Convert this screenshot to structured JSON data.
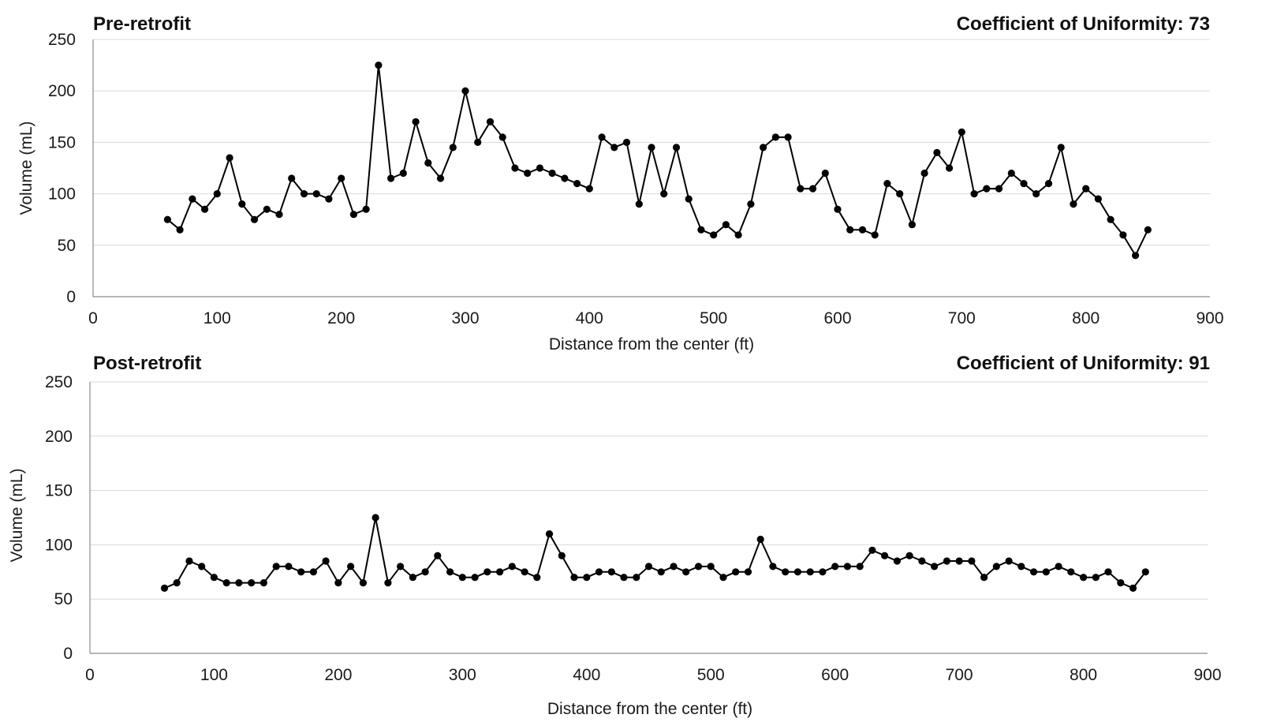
{
  "chart_data": [
    {
      "type": "line",
      "title": "Pre-retrofit",
      "annotation": "Coefficient of Uniformity: 73",
      "xlabel": "Distance from the center (ft)",
      "ylabel": "Volume (mL)",
      "xlim": [
        0,
        900
      ],
      "ylim": [
        0,
        250
      ],
      "xticks": [
        0,
        100,
        200,
        300,
        400,
        500,
        600,
        700,
        800,
        900
      ],
      "yticks": [
        0,
        50,
        100,
        150,
        200,
        250
      ],
      "grid": true,
      "x": [
        60,
        70,
        80,
        90,
        100,
        110,
        120,
        130,
        140,
        150,
        160,
        170,
        180,
        190,
        200,
        210,
        220,
        230,
        240,
        250,
        260,
        270,
        280,
        290,
        300,
        310,
        320,
        330,
        340,
        350,
        360,
        370,
        380,
        390,
        400,
        410,
        420,
        430,
        440,
        450,
        460,
        470,
        480,
        490,
        500,
        510,
        520,
        530,
        540,
        550,
        560,
        570,
        580,
        590,
        600,
        610,
        620,
        630,
        640,
        650,
        660,
        670,
        680,
        690,
        700,
        710,
        720,
        730,
        740,
        750,
        760,
        770,
        780,
        790,
        800,
        810,
        820,
        830,
        840,
        850
      ],
      "values": [
        75,
        65,
        95,
        85,
        100,
        135,
        90,
        75,
        85,
        80,
        115,
        100,
        100,
        95,
        115,
        80,
        85,
        225,
        115,
        120,
        170,
        130,
        115,
        145,
        200,
        150,
        170,
        155,
        125,
        120,
        125,
        120,
        115,
        110,
        105,
        155,
        145,
        150,
        90,
        145,
        100,
        145,
        95,
        65,
        60,
        70,
        60,
        90,
        145,
        155,
        155,
        105,
        105,
        120,
        85,
        65,
        65,
        60,
        110,
        100,
        70,
        120,
        140,
        125,
        160,
        100,
        105,
        105,
        120,
        110,
        100,
        110,
        145,
        90,
        105,
        95,
        75,
        60,
        40,
        65
      ]
    },
    {
      "type": "line",
      "title": "Post-retrofit",
      "annotation": "Coefficient of Uniformity: 91",
      "xlabel": "Distance from the center (ft)",
      "ylabel": "Volume (mL)",
      "xlim": [
        0,
        900
      ],
      "ylim": [
        0,
        250
      ],
      "xticks": [
        0,
        100,
        200,
        300,
        400,
        500,
        600,
        700,
        800,
        900
      ],
      "yticks": [
        0,
        50,
        100,
        150,
        200,
        250
      ],
      "grid": true,
      "x": [
        60,
        70,
        80,
        90,
        100,
        110,
        120,
        130,
        140,
        150,
        160,
        170,
        180,
        190,
        200,
        210,
        220,
        230,
        240,
        250,
        260,
        270,
        280,
        290,
        300,
        310,
        320,
        330,
        340,
        350,
        360,
        370,
        380,
        390,
        400,
        410,
        420,
        430,
        440,
        450,
        460,
        470,
        480,
        490,
        500,
        510,
        520,
        530,
        540,
        550,
        560,
        570,
        580,
        590,
        600,
        610,
        620,
        630,
        640,
        650,
        660,
        670,
        680,
        690,
        700,
        710,
        720,
        730,
        740,
        750,
        760,
        770,
        780,
        790,
        800,
        810,
        820,
        830,
        840,
        850
      ],
      "values": [
        60,
        65,
        85,
        80,
        70,
        65,
        65,
        65,
        65,
        80,
        80,
        75,
        75,
        85,
        65,
        80,
        65,
        125,
        65,
        80,
        70,
        75,
        90,
        75,
        70,
        70,
        75,
        75,
        80,
        75,
        70,
        110,
        90,
        70,
        70,
        75,
        75,
        70,
        70,
        80,
        75,
        80,
        75,
        80,
        80,
        70,
        75,
        75,
        105,
        80,
        75,
        75,
        75,
        75,
        80,
        80,
        80,
        95,
        90,
        85,
        90,
        85,
        80,
        85,
        85,
        85,
        70,
        80,
        85,
        80,
        75,
        75,
        80,
        75,
        70,
        70,
        75,
        65,
        60,
        75
      ]
    }
  ]
}
